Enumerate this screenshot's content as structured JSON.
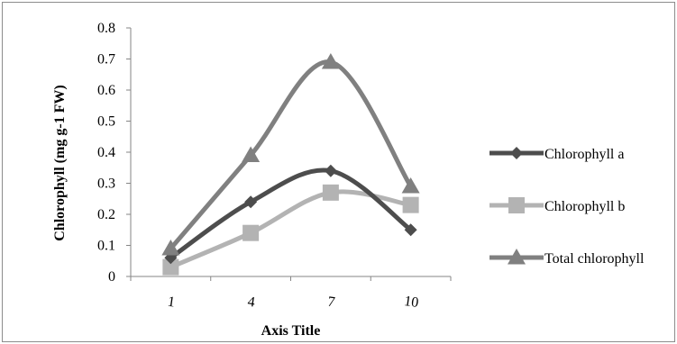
{
  "chart_data": {
    "type": "line",
    "categories": [
      "1",
      "4",
      "7",
      "10"
    ],
    "series": [
      {
        "name": "Chlorophyll a",
        "values": [
          0.06,
          0.24,
          0.34,
          0.15
        ],
        "color": "#4d4d4d",
        "marker": "diamond"
      },
      {
        "name": "Chlorophyll b",
        "values": [
          0.03,
          0.14,
          0.27,
          0.23
        ],
        "color": "#b3b3b3",
        "marker": "square"
      },
      {
        "name": "Total chlorophyll",
        "values": [
          0.09,
          0.39,
          0.69,
          0.29
        ],
        "color": "#808080",
        "marker": "triangle"
      }
    ],
    "xlabel": "Axis Title",
    "ylabel": "Chlorophyll (mg g-1 FW)",
    "ylim": [
      0,
      0.8
    ],
    "yticks": [
      "0",
      "0.1",
      "0.2",
      "0.3",
      "0.4",
      "0.5",
      "0.6",
      "0.7",
      "0.8"
    ],
    "grid": false,
    "legend": "right",
    "smooth": true
  }
}
